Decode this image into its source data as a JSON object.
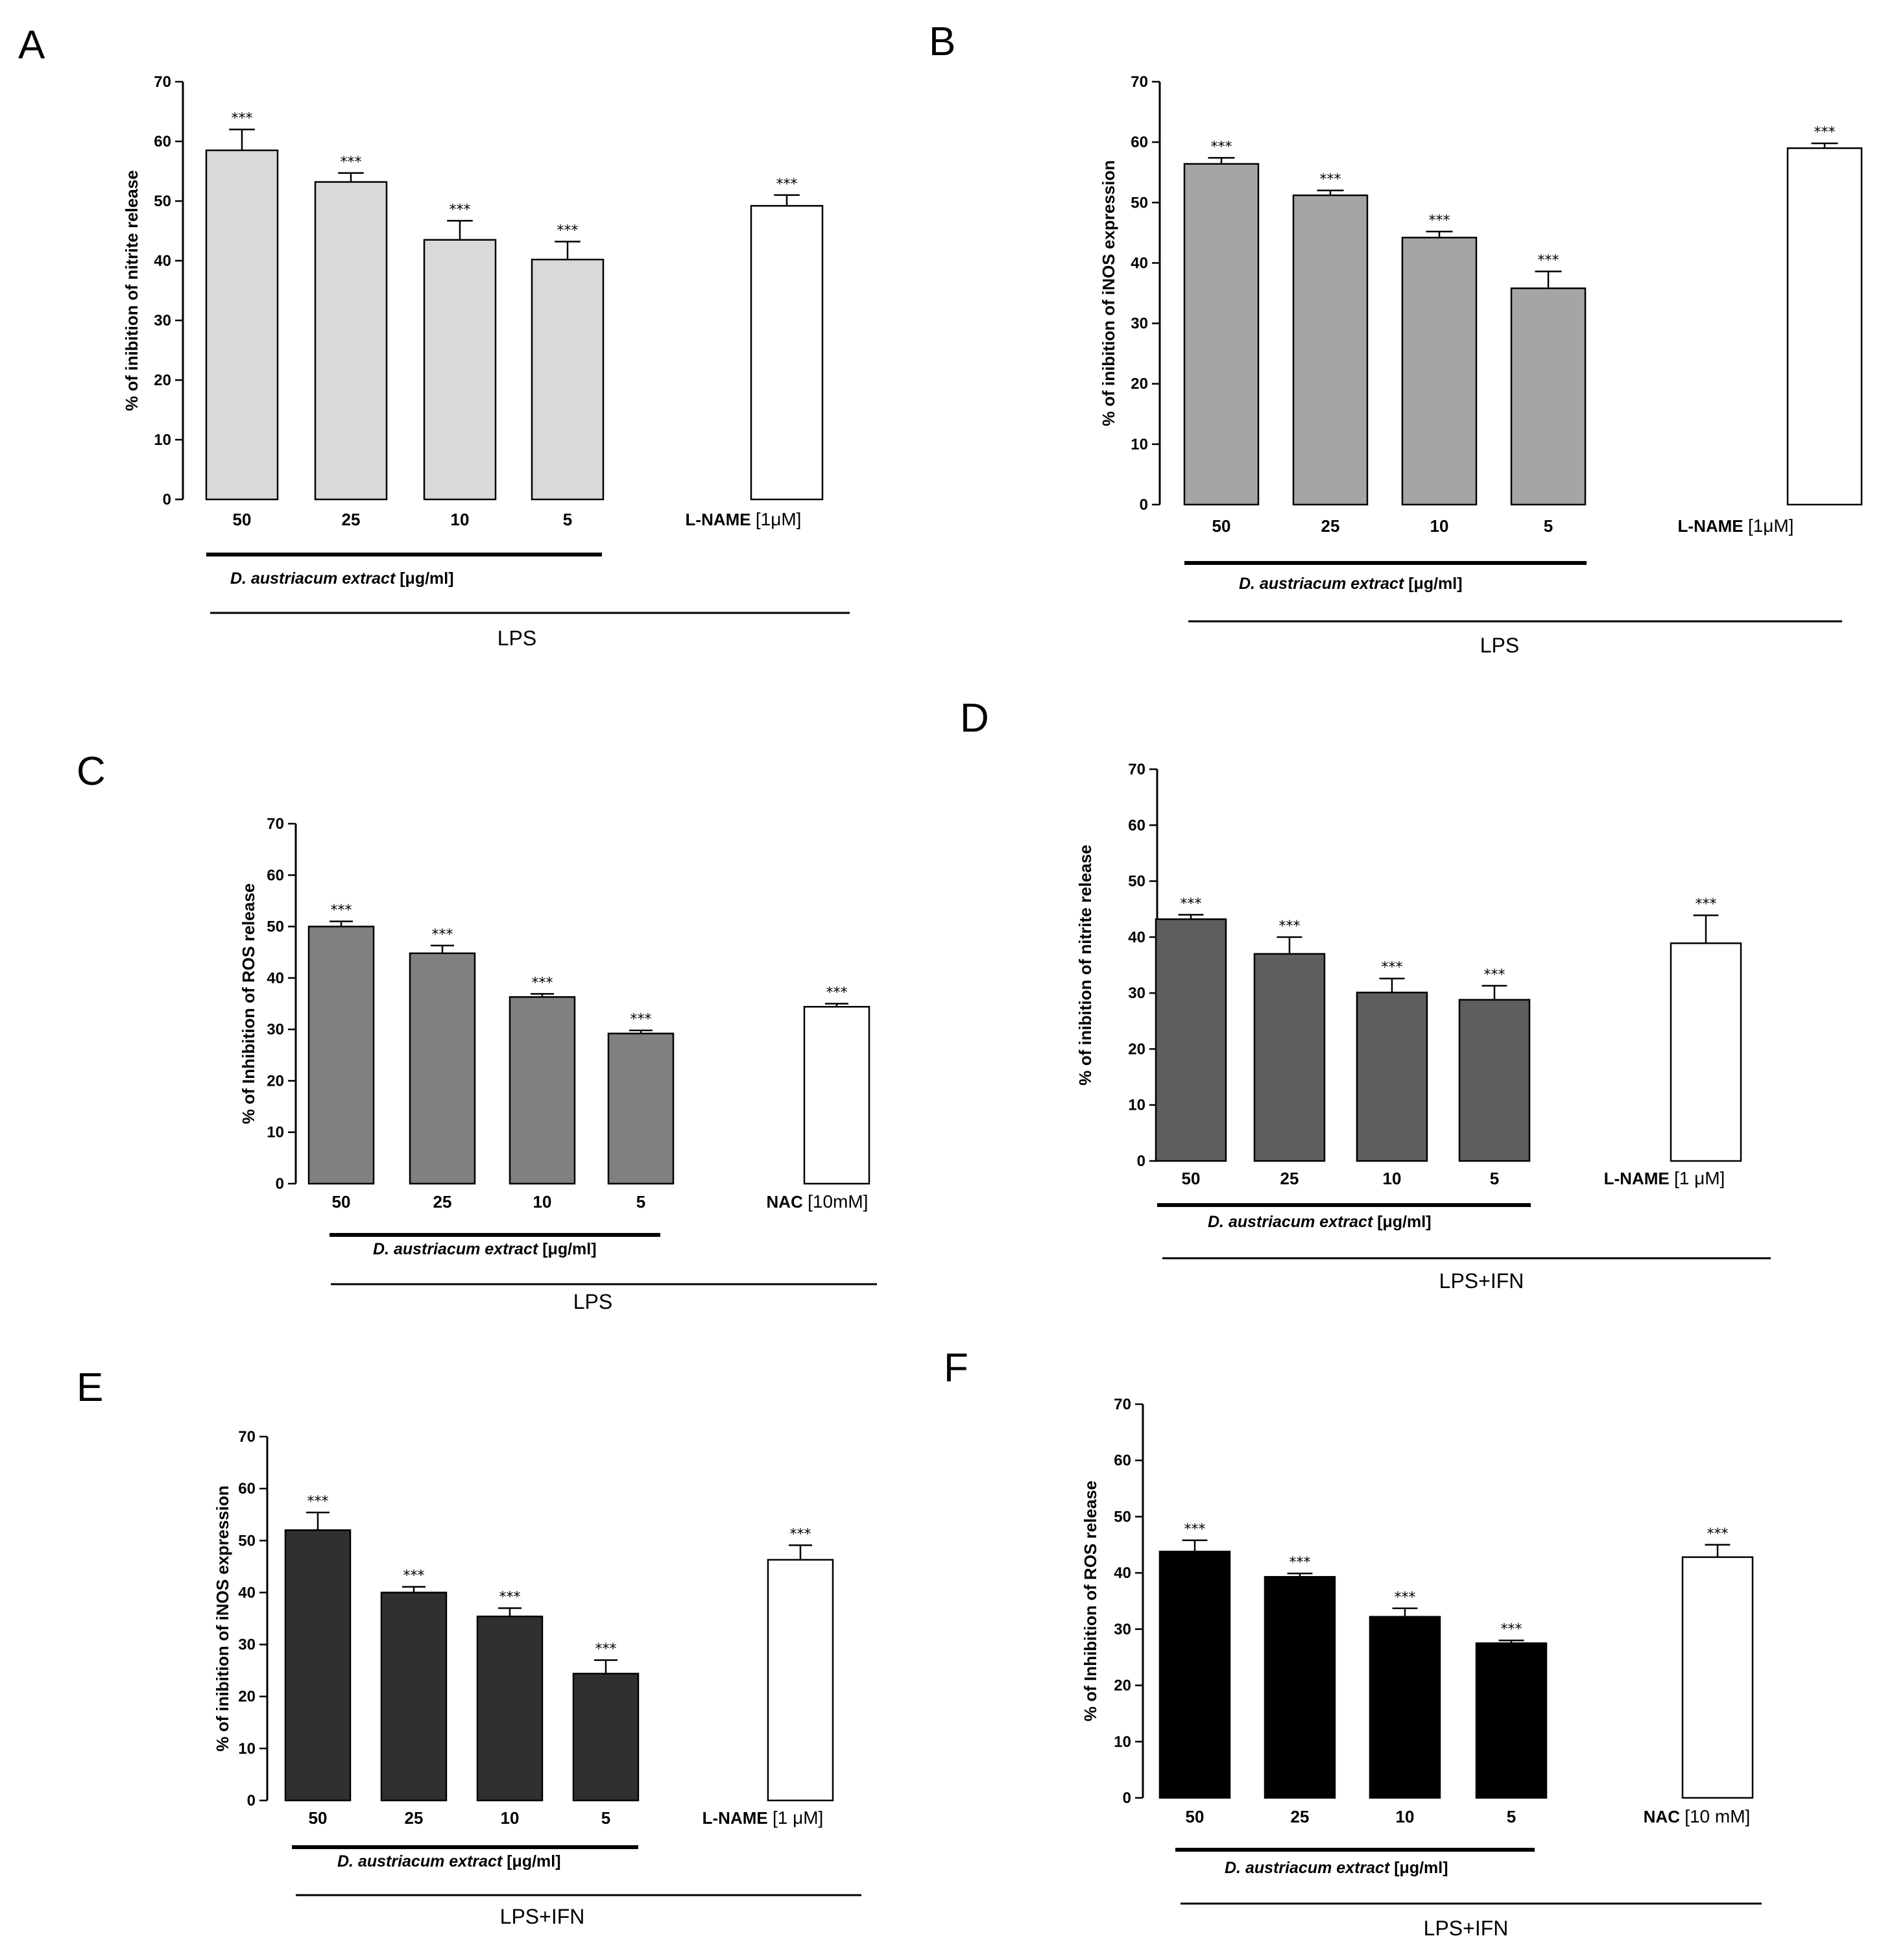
{
  "chart_data": [
    {
      "panel": "A",
      "type": "bar",
      "ylabel": "% of inibition of nitrite release",
      "ylim": [
        0,
        70
      ],
      "yticks": [
        0,
        10,
        20,
        30,
        40,
        50,
        60,
        70
      ],
      "categories": [
        "50",
        "25",
        "10",
        "5"
      ],
      "values": [
        58.5,
        53.2,
        43.5,
        40.2
      ],
      "errors": [
        3.5,
        1.5,
        3.2,
        3.0
      ],
      "bar_color": "#d9d9d9",
      "control": {
        "name": "L-NAME",
        "dose": "[1μM]",
        "value": 49.2,
        "error": 1.8
      },
      "significance": [
        "***",
        "***",
        "***",
        "***",
        "***"
      ],
      "extract_label": {
        "italic": "D. austriacum extract",
        "unit": "[μg/ml]"
      },
      "treatment_label": "LPS"
    },
    {
      "panel": "B",
      "type": "bar",
      "ylabel": "% of inibition of iNOS expression",
      "ylim": [
        0,
        70
      ],
      "yticks": [
        0,
        10,
        20,
        30,
        40,
        50,
        60,
        70
      ],
      "categories": [
        "50",
        "25",
        "10",
        "5"
      ],
      "values": [
        56.4,
        51.2,
        44.2,
        35.8
      ],
      "errors": [
        1.0,
        0.8,
        1.0,
        2.8
      ],
      "bar_color": "#a5a5a5",
      "control": {
        "name": "L-NAME",
        "dose": "[1μM]",
        "value": 59.0,
        "error": 0.8
      },
      "significance": [
        "***",
        "***",
        "***",
        "***",
        "***"
      ],
      "extract_label": {
        "italic": "D. austriacum extract",
        "unit": "[μg/ml]"
      },
      "treatment_label": "LPS"
    },
    {
      "panel": "C",
      "type": "bar",
      "ylabel": "% of Inhibition of ROS release",
      "ylim": [
        0,
        70
      ],
      "yticks": [
        0,
        10,
        20,
        30,
        40,
        50,
        60,
        70
      ],
      "categories": [
        "50",
        "25",
        "10",
        "5"
      ],
      "values": [
        50.0,
        44.8,
        36.3,
        29.2
      ],
      "errors": [
        1.0,
        1.5,
        0.6,
        0.6
      ],
      "bar_color": "#808080",
      "control": {
        "name": "NAC",
        "dose": "[10mM]",
        "value": 34.4,
        "error": 0.6
      },
      "significance": [
        "***",
        "***",
        "***",
        "***",
        "***"
      ],
      "extract_label": {
        "italic": "D. austriacum extract",
        "unit": "[μg/ml]"
      },
      "treatment_label": "LPS"
    },
    {
      "panel": "D",
      "type": "bar",
      "ylabel": "% of inibition of nitrite release",
      "ylim": [
        0,
        70
      ],
      "yticks": [
        0,
        10,
        20,
        30,
        40,
        50,
        60,
        70
      ],
      "categories": [
        "50",
        "25",
        "10",
        "5"
      ],
      "values": [
        43.2,
        37.0,
        30.1,
        28.8
      ],
      "errors": [
        0.8,
        3.0,
        2.5,
        2.5
      ],
      "bar_color": "#5e5e5e",
      "control": {
        "name": "L-NAME",
        "dose": "[1 μM]",
        "value": 38.9,
        "error": 5.0
      },
      "significance": [
        "***",
        "***",
        "***",
        "***",
        "***"
      ],
      "extract_label": {
        "italic": "D. austriacum extract",
        "unit": "[μg/ml]"
      },
      "treatment_label": "LPS+IFN"
    },
    {
      "panel": "E",
      "type": "bar",
      "ylabel": "% of inibition of iNOS expression",
      "ylim": [
        0,
        70
      ],
      "yticks": [
        0,
        10,
        20,
        30,
        40,
        50,
        60,
        70
      ],
      "categories": [
        "50",
        "25",
        "10",
        "5"
      ],
      "values": [
        52.0,
        40.0,
        35.4,
        24.4
      ],
      "errors": [
        3.4,
        1.1,
        1.6,
        2.6
      ],
      "bar_color": "#303030",
      "control": {
        "name": "L-NAME",
        "dose": "[1 μM]",
        "value": 46.3,
        "error": 2.8
      },
      "significance": [
        "***",
        "***",
        "***",
        "***",
        "***"
      ],
      "extract_label": {
        "italic": "D. austriacum extract",
        "unit": "[μg/ml]"
      },
      "treatment_label": "LPS+IFN"
    },
    {
      "panel": "F",
      "type": "bar",
      "ylabel": "% of Inhibition of ROS release",
      "ylim": [
        0,
        70
      ],
      "yticks": [
        0,
        10,
        20,
        30,
        40,
        50,
        60,
        70
      ],
      "categories": [
        "50",
        "25",
        "10",
        "5"
      ],
      "values": [
        43.8,
        39.3,
        32.2,
        27.5
      ],
      "errors": [
        2.0,
        0.6,
        1.5,
        0.5
      ],
      "bar_color": "#000000",
      "control": {
        "name": "NAC",
        "dose": "[10 mM]",
        "value": 42.8,
        "error": 2.2
      },
      "significance": [
        "***",
        "***",
        "***",
        "***",
        "***"
      ],
      "extract_label": {
        "italic": "D. austriacum extract",
        "unit": "[μg/ml]"
      },
      "treatment_label": "LPS+IFN"
    }
  ]
}
